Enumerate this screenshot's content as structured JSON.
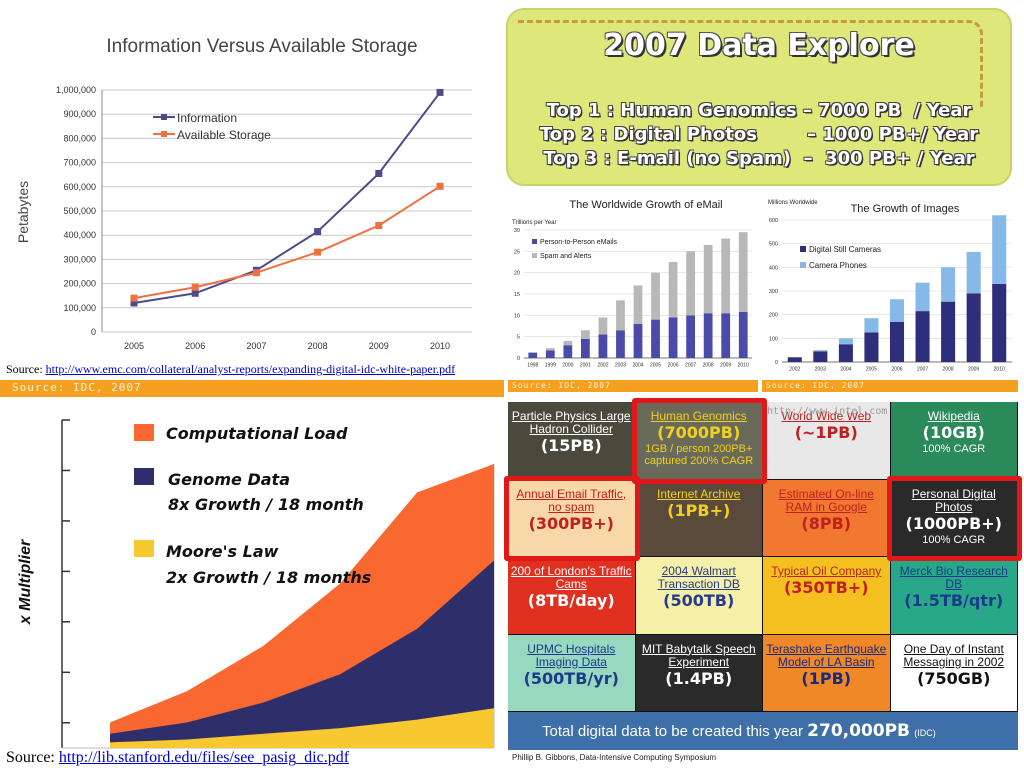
{
  "chart_data": [
    {
      "type": "line",
      "title": "Information Versus Available Storage",
      "ylabel": "Petabytes",
      "xlabel": "",
      "x": [
        "2005",
        "2006",
        "2007",
        "2008",
        "2009",
        "2010"
      ],
      "ylim": [
        0,
        1000000
      ],
      "yticks": [
        "0",
        "100,000",
        "200,000",
        "300,000",
        "400,000",
        "500,000",
        "600,000",
        "700,000",
        "800,000",
        "900,000",
        "1,000,000"
      ],
      "grid": true,
      "legend": "top-left",
      "series": [
        {
          "name": "Information",
          "color": "#4c4c8c",
          "values": [
            120000,
            160000,
            255000,
            415000,
            655000,
            990000
          ]
        },
        {
          "name": "Available Storage",
          "color": "#f07040",
          "values": [
            140000,
            185000,
            245000,
            330000,
            440000,
            602000
          ]
        }
      ]
    },
    {
      "type": "bar",
      "title": "The Worldwide Growth of eMail",
      "ylabel": "Trillions per Year",
      "categories": [
        "1998",
        "1999",
        "2000",
        "2001",
        "2002",
        "2003",
        "2004",
        "2005",
        "2006",
        "2007",
        "2008",
        "2009",
        "2010"
      ],
      "ylim": [
        0,
        30
      ],
      "yticks": [
        "0",
        "5",
        "10",
        "15",
        "20",
        "25",
        "30"
      ],
      "stacked": true,
      "legend": "top-left",
      "series": [
        {
          "name": "Person-to-Person eMails",
          "color": "#4a4aa8",
          "values": [
            1.2,
            1.8,
            3,
            4.5,
            5.5,
            6.5,
            8,
            9,
            9.5,
            10,
            10.5,
            10.5,
            10.8
          ]
        },
        {
          "name": "Spam and Alerts",
          "color": "#b8b8b8",
          "values": [
            0.2,
            0.5,
            1,
            2,
            4,
            7,
            9,
            11,
            13,
            15,
            16,
            17.5,
            18.7
          ]
        }
      ],
      "source": "Source: IDC, 2007"
    },
    {
      "type": "bar",
      "title": "The Growth of Images",
      "ylabel": "Millions Worldwide",
      "categories": [
        "2002",
        "2003",
        "2004",
        "2005",
        "2006",
        "2007",
        "2008",
        "2009",
        "2010"
      ],
      "ylim": [
        0,
        600
      ],
      "yticks": [
        "0",
        "100",
        "200",
        "300",
        "400",
        "500",
        "600"
      ],
      "stacked": true,
      "legend": "top-left",
      "series": [
        {
          "name": "Digital Still Cameras",
          "color": "#2e2e7a",
          "values": [
            20,
            45,
            75,
            125,
            170,
            215,
            255,
            290,
            330
          ]
        },
        {
          "name": "Camera Phones",
          "color": "#86b8e8",
          "values": [
            0,
            5,
            25,
            60,
            95,
            120,
            145,
            175,
            290
          ]
        }
      ],
      "source": "Source: IDC, 2007"
    },
    {
      "type": "area",
      "ylabel": "x Multiplier",
      "x": [
        0,
        1,
        2,
        3,
        4,
        5
      ],
      "ylim": [
        0,
        1
      ],
      "legend": "top-right",
      "series": [
        {
          "name": "Moore's Law",
          "color": "#f8c830",
          "values": [
            0.02,
            0.03,
            0.05,
            0.07,
            0.1,
            0.14
          ]
        },
        {
          "name": "Genome Data",
          "color": "#2e2e6a",
          "values": [
            0.05,
            0.09,
            0.16,
            0.26,
            0.42,
            0.66
          ]
        },
        {
          "name": "Computational Load",
          "color": "#f86830",
          "values": [
            0.09,
            0.2,
            0.36,
            0.58,
            0.9,
            1.0
          ]
        }
      ],
      "legend_entries": [
        {
          "name": "Computational Load",
          "desc": ""
        },
        {
          "name": "Genome Data",
          "desc": "8x Growth / 18 month"
        },
        {
          "name": "Moore's Law",
          "desc": "2x Growth / 18 months"
        }
      ]
    }
  ],
  "sources": {
    "top_prefix": "Source: ",
    "top_link": "http://www.emc.com/collateral/analyst-reports/expanding-digital-idc-white-paper.pdf",
    "idc_bar": "Source: IDC, 2007",
    "bottom_prefix": "Source: ",
    "bottom_link": "http://lib.stanford.edu/files/see_pasig_dic.pdf",
    "gibbons": "Phillip B. Gibbons, Data-Intensive Computing Symposium"
  },
  "explore": {
    "title": "2007 Data Explore",
    "lines": [
      "Top 1 : Human Genomics – 7000 PB  / Year",
      "Top 2 : Digital Photos        – 1000 PB+/ Year",
      "Top 3 : E-mail (no Spam)  –  300 PB+ / Year"
    ]
  },
  "grid": {
    "tiles": [
      {
        "label": "Particle Physics Large Hadron Collider",
        "value": "(15PB)",
        "sub": ""
      },
      {
        "label": "Human Genomics",
        "value": "(7000PB)",
        "sub": "1GB / person 200PB+ captured 200% CAGR"
      },
      {
        "label": "World Wide Web",
        "value": "(~1PB)",
        "sub": ""
      },
      {
        "label": "Wikipedia",
        "value": "(10GB)",
        "sub": "100% CAGR"
      },
      {
        "label": "Annual Email Traffic, no spam",
        "value": "(300PB+)",
        "sub": ""
      },
      {
        "label": "Internet Archive",
        "value": "(1PB+)",
        "sub": ""
      },
      {
        "label": "Estimated On-line RAM in Google",
        "value": "(8PB)",
        "sub": ""
      },
      {
        "label": "Personal Digital Photos",
        "value": "(1000PB+)",
        "sub": "100% CAGR"
      },
      {
        "label": "200 of London's Traffic Cams",
        "value": "(8TB/day)",
        "sub": ""
      },
      {
        "label": "2004 Walmart Transaction DB",
        "value": "(500TB)",
        "sub": ""
      },
      {
        "label": "Typical Oil Company",
        "value": "(350TB+)",
        "sub": ""
      },
      {
        "label": "Merck Bio Research DB",
        "value": "(1.5TB/qtr)",
        "sub": ""
      },
      {
        "label": "UPMC Hospitals Imaging Data",
        "value": "(500TB/yr)",
        "sub": ""
      },
      {
        "label": "MIT Babytalk Speech Experiment",
        "value": "(1.4PB)",
        "sub": ""
      },
      {
        "label": "Terashake Earthquake Model of LA Basin",
        "value": "(1PB)",
        "sub": ""
      },
      {
        "label": "One Day of Instant Messaging in 2002",
        "value": "(750GB)",
        "sub": ""
      }
    ],
    "total_text": "Total digital data to be created this year",
    "total_value": "270,000PB",
    "total_note": "(IDC)",
    "url_text": "http://www.intel.com"
  }
}
